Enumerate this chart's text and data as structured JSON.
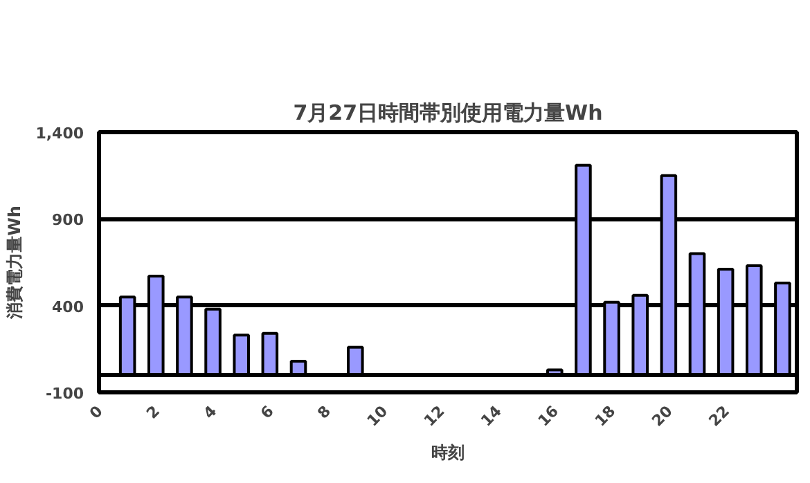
{
  "chart_data": {
    "type": "bar",
    "title": "7月27日時間帯別使用電力量Wh",
    "xlabel": "時刻",
    "ylabel": "消費電力量Wh",
    "x": [
      1,
      2,
      3,
      4,
      5,
      6,
      7,
      8,
      9,
      10,
      11,
      12,
      13,
      14,
      15,
      16,
      17,
      18,
      19,
      20,
      21,
      22,
      23,
      24
    ],
    "series": [
      {
        "color": "#9999ff",
        "values": [
          450,
          570,
          450,
          380,
          230,
          240,
          80,
          null,
          160,
          null,
          null,
          null,
          null,
          null,
          null,
          30,
          1210,
          420,
          460,
          1150,
          700,
          610,
          630,
          530
        ]
      }
    ],
    "xlim": [
      0,
      24.5
    ],
    "xticks": [
      0,
      2,
      4,
      6,
      8,
      10,
      12,
      14,
      16,
      18,
      20,
      22
    ],
    "ylim": [
      -100,
      1400
    ],
    "yticks": [
      -100,
      {
        "value": 400,
        "label": "400"
      },
      900,
      {
        "value": 1400,
        "label": "1,400"
      }
    ],
    "grid": "y",
    "ref_lines": [
      {
        "axis": "y",
        "value": 0
      }
    ]
  }
}
